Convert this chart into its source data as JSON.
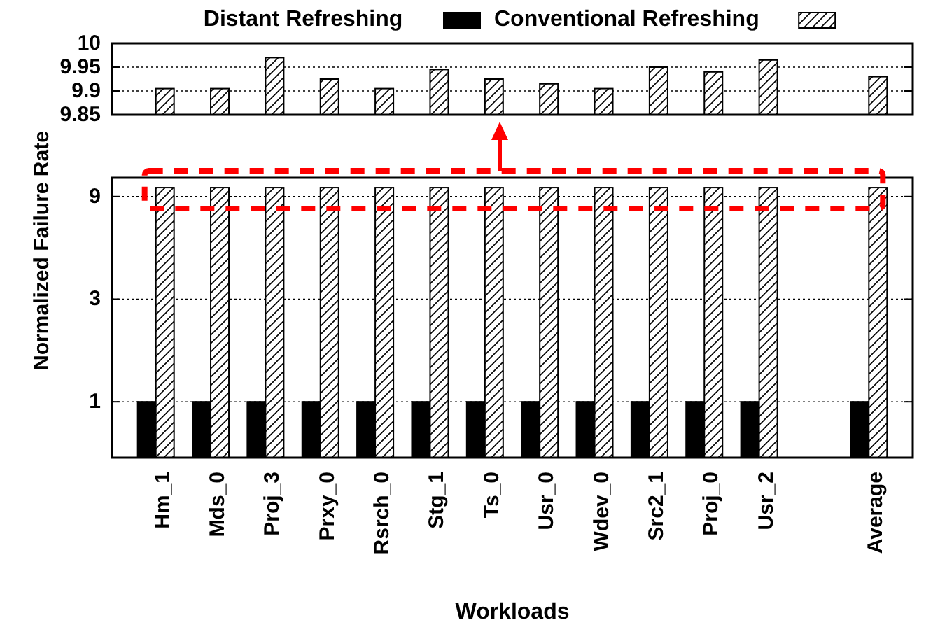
{
  "chart_data": [
    {
      "type": "bar",
      "categories": [
        null,
        null,
        null,
        null,
        null,
        null,
        null,
        null,
        null,
        null,
        null,
        null,
        null,
        null
      ],
      "series": [
        {
          "color": "#ffffff",
          "values": [
            9.905,
            9.905,
            9.97,
            9.925,
            9.905,
            9.945,
            9.925,
            9.915,
            9.905,
            9.95,
            9.94,
            9.965,
            null,
            9.93
          ]
        }
      ],
      "ylim": [
        9.85,
        10
      ],
      "yticks": [
        9.85,
        9.9,
        9.95,
        10
      ],
      "grid": "y",
      "tick_labels": "y"
    },
    {
      "type": "bar",
      "xlabel": "Workloads",
      "ylabel": "Normalized Failure Rate",
      "categories": [
        "Hm_1",
        "Mds_0",
        "Proj_3",
        "Prxy_0",
        "Rsrch_0",
        "Stg_1",
        "Ts_0",
        "Usr_0",
        "Wdev_0",
        "Src2_1",
        "Proj_0",
        "Usr_2",
        null,
        "Average"
      ],
      "series": [
        {
          "name": "Distant Refreshing",
          "color": "#000000",
          "values": [
            1,
            1,
            1,
            1,
            1,
            1,
            1,
            1,
            1,
            1,
            1,
            1,
            null,
            1
          ]
        },
        {
          "name": "Conventional Refreshing",
          "color": "#ffffff",
          "values": [
            9.9,
            9.9,
            9.9,
            9.9,
            9.9,
            9.9,
            9.9,
            9.9,
            9.9,
            9.9,
            9.9,
            9.9,
            null,
            9.9
          ]
        }
      ],
      "ylim": [
        0.55,
        11
      ],
      "yticks": [
        1,
        3,
        9
      ],
      "log": true,
      "grid": "y",
      "legend": "top"
    }
  ]
}
